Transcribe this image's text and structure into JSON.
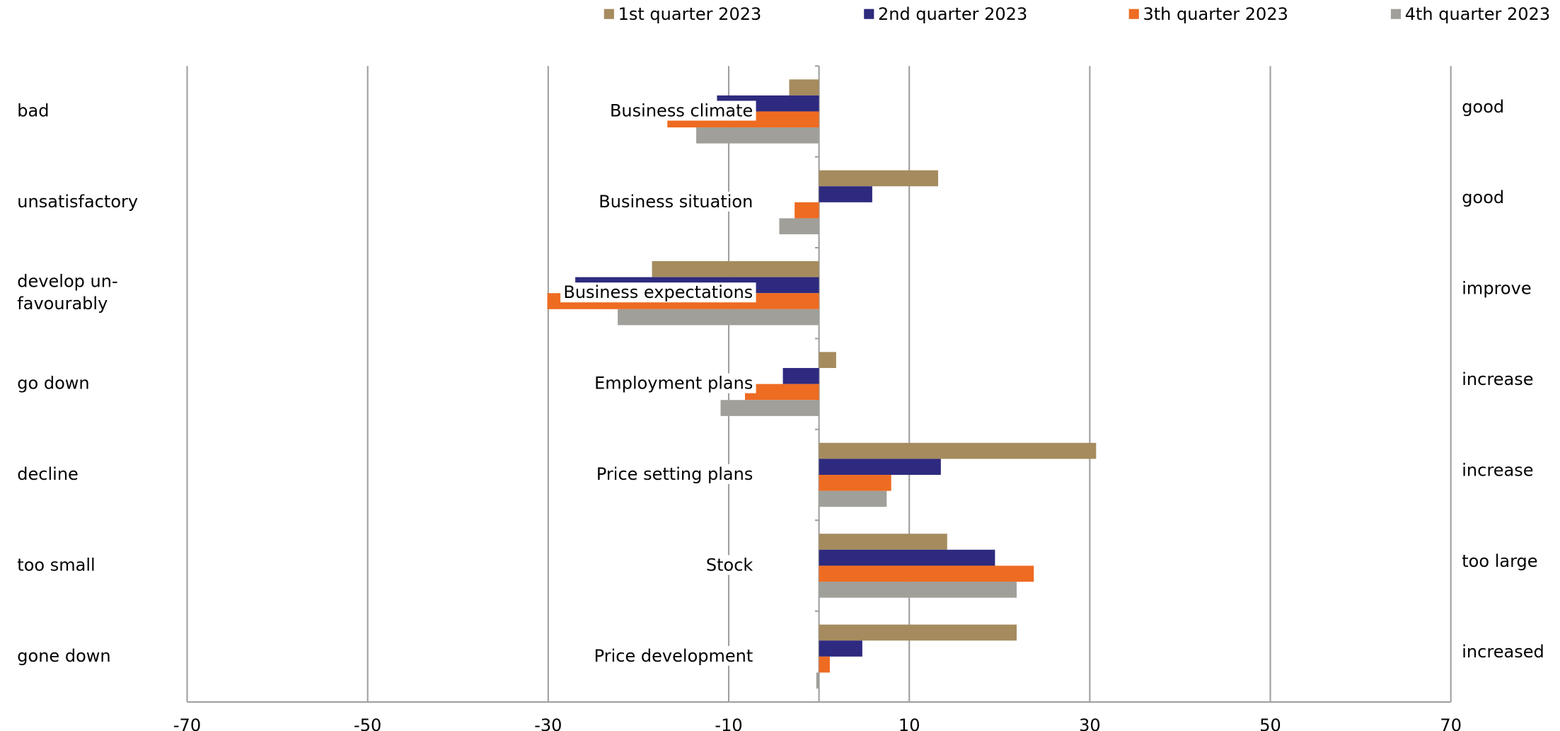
{
  "chart_data": {
    "type": "hbar",
    "categories": [
      "Business climate",
      "Business situation",
      "Business expectations",
      "Employment plans",
      "Price setting plans",
      "Stock",
      "Price development"
    ],
    "left_labels": [
      [
        "bad"
      ],
      [
        "unsatisfactory"
      ],
      [
        "develop un-",
        "favourably"
      ],
      [
        "go down"
      ],
      [
        "decline"
      ],
      [
        "too small"
      ],
      [
        "gone down"
      ]
    ],
    "right_labels": [
      "good",
      "good",
      "improve",
      "increase",
      "increase",
      "too large",
      "increased"
    ],
    "series": [
      {
        "name": "1st quarter 2023",
        "color": "#a58b5e",
        "values": [
          -3.3,
          13.2,
          -18.5,
          1.9,
          30.7,
          14.2,
          21.9
        ]
      },
      {
        "name": "2nd quarter 2023",
        "color": "#2e2a7f",
        "values": [
          -11.3,
          5.9,
          -27,
          -4,
          13.5,
          19.5,
          4.8
        ]
      },
      {
        "name": "3th quarter 2023",
        "color": "#ee6b22",
        "values": [
          -16.8,
          -2.7,
          -30.1,
          -8.2,
          8,
          23.8,
          1.2
        ]
      },
      {
        "name": "4th quarter 2023",
        "color": "#a09f99",
        "values": [
          -13.6,
          -4.4,
          -22.3,
          -10.9,
          7.5,
          21.9,
          -0.3
        ]
      }
    ],
    "xlim": [
      -70,
      70
    ],
    "xticks": [
      -70,
      -50,
      -30,
      -10,
      10,
      30,
      50,
      70
    ],
    "grid": true,
    "legend": "top"
  }
}
